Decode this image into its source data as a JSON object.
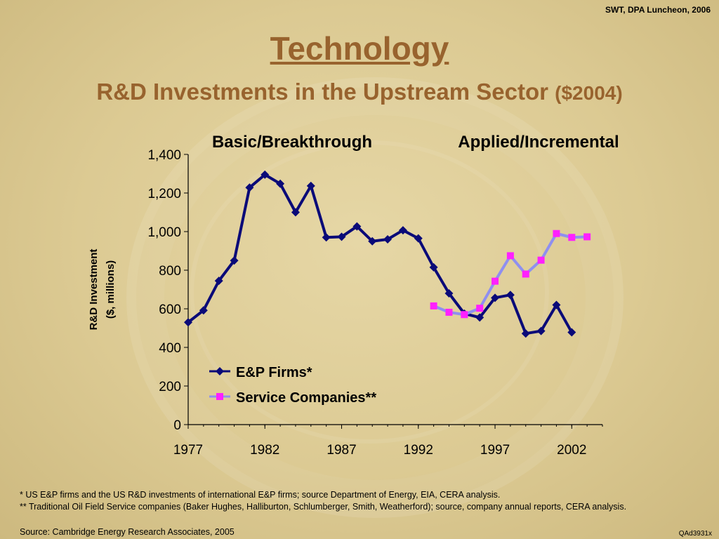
{
  "header": {
    "corner_note": "SWT, DPA Luncheon, 2006",
    "title": "Technology",
    "subtitle": "R&D Investments in the Upstream Sector",
    "subtitle_unit": "($2004)"
  },
  "chart_data": {
    "type": "line",
    "ylabel_line1": "R&D Investment",
    "ylabel_line2": "($, millions)",
    "ylim": [
      0,
      1400
    ],
    "xlim": [
      1977,
      2004
    ],
    "y_ticks": [
      0,
      200,
      400,
      600,
      800,
      1000,
      1200,
      1400
    ],
    "y_tick_labels": [
      "0",
      "200",
      "400",
      "600",
      "800",
      "1,000",
      "1,200",
      "1,400"
    ],
    "x_ticks": [
      1977,
      1982,
      1987,
      1992,
      1997,
      2002
    ],
    "x_tick_labels": [
      "1977",
      "1982",
      "1987",
      "1992",
      "1997",
      "2002"
    ],
    "region_labels": [
      "Basic/Breakthrough",
      "Applied/Incremental"
    ],
    "legend_position": "lower-left",
    "series": [
      {
        "name": "E&P Firms*",
        "color": "#0a0a78",
        "marker": "diamond",
        "x": [
          1977,
          1978,
          1979,
          1980,
          1981,
          1982,
          1983,
          1984,
          1985,
          1986,
          1987,
          1988,
          1989,
          1990,
          1991,
          1992,
          1993,
          1994,
          1995,
          1996,
          1997,
          1998,
          1999,
          2000,
          2001,
          2002
        ],
        "values": [
          530,
          592,
          745,
          850,
          1228,
          1295,
          1248,
          1100,
          1237,
          970,
          973,
          1027,
          950,
          960,
          1007,
          965,
          815,
          680,
          575,
          555,
          657,
          672,
          472,
          485,
          620,
          478
        ]
      },
      {
        "name": "Service Companies**",
        "color": "#8f8ff0",
        "marker_color": "#ff20ff",
        "marker": "square",
        "x": [
          1993,
          1994,
          1995,
          1996,
          1997,
          1998,
          1999,
          2000,
          2001,
          2002,
          2003
        ],
        "values": [
          615,
          582,
          570,
          603,
          743,
          875,
          780,
          852,
          990,
          970,
          973
        ]
      }
    ]
  },
  "footnotes": {
    "line1": "* US E&P firms and the US R&D investments of international E&P firms; source Department of Energy, EIA, CERA analysis.",
    "line2": "** Traditional Oil Field Service companies (Baker Hughes, Halliburton, Schlumberger, Smith, Weatherford); source, company annual reports, CERA analysis."
  },
  "source": "Source: Cambridge Energy Research Associates, 2005",
  "code": "QAd3931x"
}
